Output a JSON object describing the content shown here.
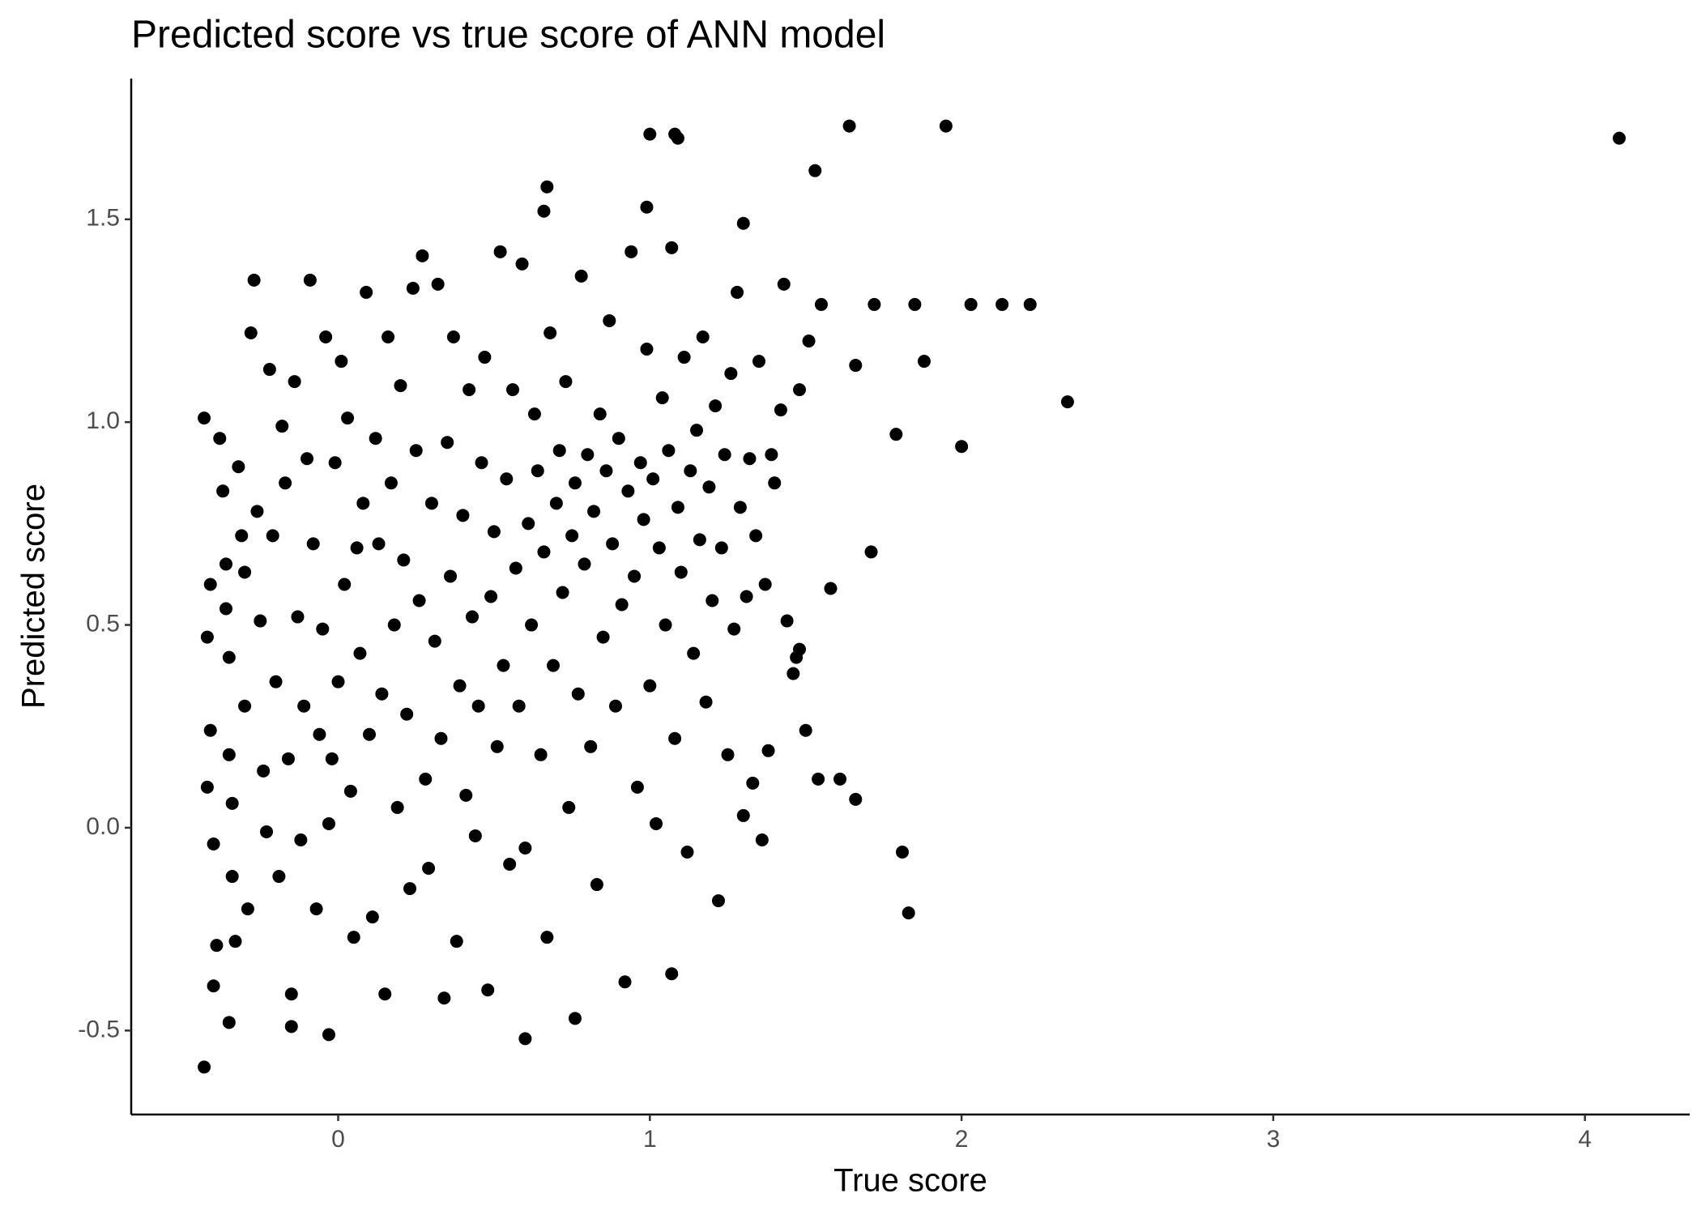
{
  "chart_data": {
    "type": "scatter",
    "title": "Predicted score vs true score of ANN model",
    "x_label": "True score",
    "y_label": "Predicted score",
    "color": "#000000",
    "xlim": [
      -0.664,
      4.336
    ],
    "ylim": [
      -0.707,
      1.847
    ],
    "xticks": [
      0,
      1,
      2,
      3,
      4
    ],
    "yticks": [
      -0.5,
      {
        "value": 0,
        "label": "0.0"
      },
      0.5,
      {
        "value": 1,
        "label": "1.0"
      },
      1.5
    ],
    "x": [
      -0.43,
      -0.41,
      -0.42,
      -0.41,
      -0.42,
      -0.4,
      -0.4,
      -0.39,
      -0.38,
      -0.37,
      -0.36,
      -0.36,
      -0.35,
      -0.35,
      -0.34,
      -0.34,
      -0.33,
      -0.32,
      -0.31,
      -0.3,
      -0.3,
      -0.29,
      -0.28,
      -0.27,
      -0.26,
      -0.25,
      -0.24,
      -0.23,
      -0.22,
      -0.21,
      -0.2,
      -0.19,
      -0.18,
      -0.17,
      -0.16,
      -0.15,
      -0.14,
      -0.13,
      -0.12,
      -0.11,
      -0.1,
      -0.09,
      -0.08,
      -0.07,
      -0.06,
      -0.05,
      -0.04,
      -0.03,
      -0.02,
      -0.01,
      0.0,
      0.01,
      0.02,
      0.03,
      0.04,
      0.05,
      0.06,
      0.07,
      0.08,
      0.09,
      0.1,
      0.11,
      0.12,
      0.13,
      0.14,
      0.15,
      0.16,
      0.17,
      0.18,
      0.19,
      0.2,
      0.21,
      0.22,
      0.23,
      0.24,
      0.25,
      0.26,
      0.27,
      0.28,
      0.29,
      0.3,
      0.31,
      0.32,
      0.33,
      0.34,
      0.35,
      0.36,
      0.37,
      0.38,
      0.39,
      0.4,
      0.41,
      0.42,
      0.43,
      0.44,
      0.45,
      0.46,
      0.47,
      0.48,
      0.49,
      0.5,
      0.51,
      0.52,
      0.53,
      0.54,
      0.55,
      0.56,
      0.57,
      0.58,
      0.59,
      0.6,
      0.61,
      0.62,
      0.63,
      0.64,
      0.65,
      0.66,
      0.67,
      0.68,
      0.69,
      0.7,
      0.71,
      0.72,
      0.73,
      0.74,
      0.75,
      0.76,
      0.77,
      0.78,
      0.79,
      0.8,
      0.81,
      0.82,
      0.83,
      0.84,
      0.85,
      0.86,
      0.87,
      0.88,
      0.89,
      0.9,
      0.91,
      0.92,
      0.93,
      0.94,
      0.95,
      0.96,
      0.97,
      0.98,
      0.99,
      1.0,
      1.01,
      1.02,
      1.03,
      1.04,
      1.05,
      1.06,
      1.07,
      1.08,
      1.09,
      1.1,
      1.11,
      1.12,
      1.13,
      1.14,
      1.15,
      1.16,
      1.17,
      1.18,
      1.19,
      1.2,
      1.21,
      1.22,
      1.23,
      1.24,
      1.25,
      1.26,
      1.27,
      1.28,
      1.29,
      1.3,
      1.31,
      1.32,
      1.33,
      1.34,
      1.35,
      1.36,
      1.37,
      1.38,
      1.39,
      1.4,
      1.42,
      1.43,
      1.44,
      1.46,
      1.48,
      1.51,
      4.11,
      1.95,
      1.64,
      1.0,
      1.08,
      1.09,
      1.53,
      0.67,
      0.66,
      0.99,
      1.3,
      2.34,
      2.0,
      1.88,
      1.85,
      2.03,
      2.13,
      2.22,
      1.72,
      1.55,
      1.66,
      1.79,
      1.71,
      1.58,
      1.81,
      1.83,
      1.66,
      1.61,
      1.54,
      1.5,
      1.48,
      1.47,
      -0.43,
      0.6,
      -0.03,
      0.76,
      -0.15,
      -0.35,
      1.07
    ],
    "values": [
      1.01,
      0.6,
      0.47,
      0.24,
      0.1,
      -0.04,
      -0.39,
      -0.29,
      0.96,
      0.83,
      0.65,
      0.54,
      0.42,
      0.18,
      0.06,
      -0.12,
      -0.28,
      0.89,
      0.72,
      0.63,
      0.3,
      -0.2,
      1.22,
      1.35,
      0.78,
      0.51,
      0.14,
      -0.01,
      1.13,
      0.72,
      0.36,
      -0.12,
      0.99,
      0.85,
      0.17,
      -0.41,
      1.1,
      0.52,
      -0.03,
      0.3,
      0.91,
      1.35,
      0.7,
      -0.2,
      0.23,
      0.49,
      1.21,
      0.01,
      0.17,
      0.9,
      0.36,
      1.15,
      0.6,
      1.01,
      0.09,
      -0.27,
      0.69,
      0.43,
      0.8,
      1.32,
      0.23,
      -0.22,
      0.96,
      0.7,
      0.33,
      -0.41,
      1.21,
      0.85,
      0.5,
      0.05,
      1.09,
      0.66,
      0.28,
      -0.15,
      1.33,
      0.93,
      0.56,
      1.41,
      0.12,
      -0.1,
      0.8,
      0.46,
      1.34,
      0.22,
      -0.42,
      0.95,
      0.62,
      1.21,
      -0.28,
      0.35,
      0.77,
      0.08,
      1.08,
      0.52,
      -0.02,
      0.3,
      0.9,
      1.16,
      -0.4,
      0.57,
      0.73,
      0.2,
      1.42,
      0.4,
      0.86,
      -0.09,
      1.08,
      0.64,
      0.3,
      1.39,
      -0.05,
      0.75,
      0.5,
      1.02,
      0.88,
      0.18,
      0.68,
      -0.27,
      1.22,
      0.4,
      0.8,
      0.93,
      0.58,
      1.1,
      0.05,
      0.72,
      0.85,
      0.33,
      1.36,
      0.65,
      0.92,
      0.2,
      0.78,
      -0.14,
      1.02,
      0.47,
      0.88,
      1.25,
      0.7,
      0.3,
      0.96,
      0.55,
      -0.38,
      0.83,
      1.42,
      0.62,
      0.1,
      0.9,
      0.76,
      1.18,
      0.35,
      0.86,
      0.01,
      0.69,
      1.06,
      0.5,
      0.93,
      1.43,
      0.22,
      0.79,
      0.63,
      1.16,
      -0.06,
      0.88,
      0.43,
      0.98,
      0.71,
      1.21,
      0.31,
      0.84,
      0.56,
      1.04,
      -0.18,
      0.69,
      0.92,
      0.18,
      1.12,
      0.49,
      1.32,
      0.79,
      0.03,
      0.57,
      0.91,
      0.11,
      0.72,
      1.15,
      -0.03,
      0.6,
      0.19,
      0.92,
      0.85,
      1.03,
      1.34,
      0.51,
      0.38,
      1.08,
      1.2,
      1.7,
      1.73,
      1.73,
      1.71,
      1.71,
      1.7,
      1.62,
      1.58,
      1.52,
      1.53,
      1.49,
      1.05,
      0.94,
      1.15,
      1.29,
      1.29,
      1.29,
      1.29,
      1.29,
      1.29,
      1.14,
      0.97,
      0.68,
      0.59,
      -0.06,
      -0.21,
      0.07,
      0.12,
      0.12,
      0.24,
      0.44,
      0.42,
      -0.59,
      -0.52,
      -0.51,
      -0.47,
      -0.49,
      -0.48,
      -0.36
    ]
  }
}
